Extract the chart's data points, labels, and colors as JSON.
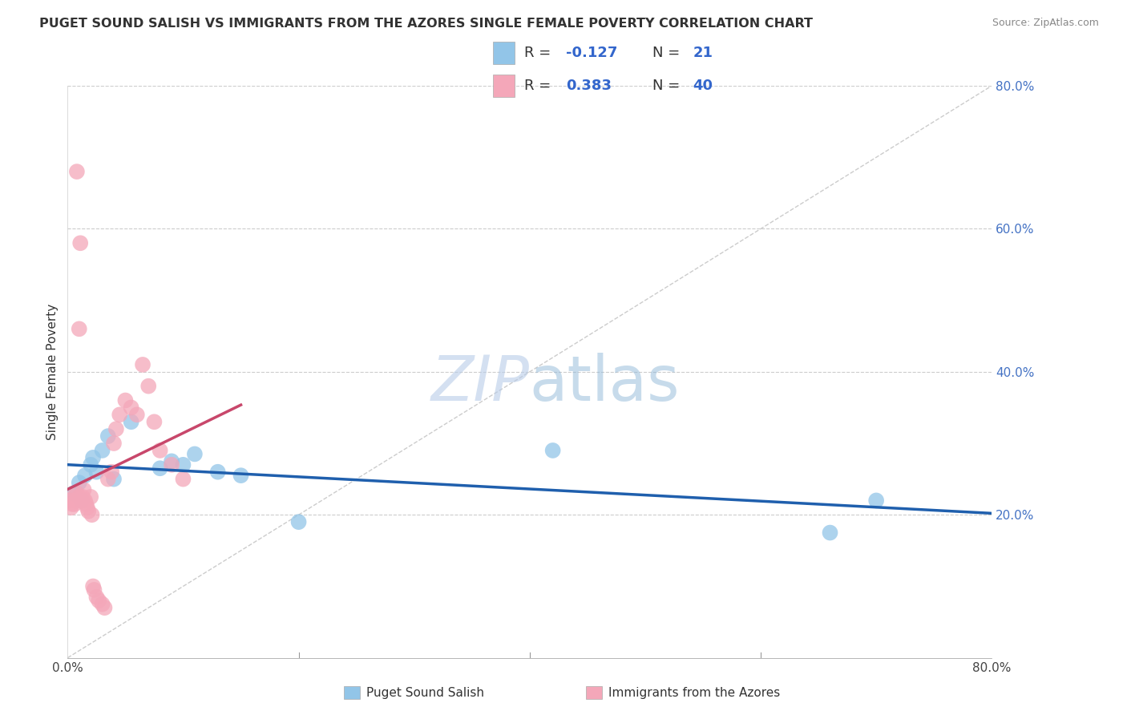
{
  "title": "PUGET SOUND SALISH VS IMMIGRANTS FROM THE AZORES SINGLE FEMALE POVERTY CORRELATION CHART",
  "source": "Source: ZipAtlas.com",
  "ylabel": "Single Female Poverty",
  "legend_label1": "Puget Sound Salish",
  "legend_label2": "Immigrants from the Azores",
  "R1": -0.127,
  "N1": 21,
  "R2": 0.383,
  "N2": 40,
  "xlim": [
    0.0,
    0.8
  ],
  "ylim": [
    0.0,
    0.8
  ],
  "yticks": [
    0.2,
    0.4,
    0.6,
    0.8
  ],
  "ytick_labels": [
    "20.0%",
    "40.0%",
    "60.0%",
    "80.0%"
  ],
  "xtick_positions": [
    0.0,
    0.2,
    0.4,
    0.6,
    0.8
  ],
  "color_blue": "#92C5E8",
  "color_pink": "#F4A7B9",
  "line_blue": "#1F5FAD",
  "line_pink": "#C8476B",
  "background": "#FFFFFF",
  "blue_points_x": [
    0.005,
    0.01,
    0.012,
    0.015,
    0.02,
    0.022,
    0.025,
    0.03,
    0.035,
    0.04,
    0.055,
    0.08,
    0.09,
    0.1,
    0.11,
    0.13,
    0.15,
    0.2,
    0.42,
    0.66,
    0.7
  ],
  "blue_points_y": [
    0.23,
    0.245,
    0.22,
    0.255,
    0.27,
    0.28,
    0.26,
    0.29,
    0.31,
    0.25,
    0.33,
    0.265,
    0.275,
    0.27,
    0.285,
    0.26,
    0.255,
    0.19,
    0.29,
    0.175,
    0.22
  ],
  "pink_points_x": [
    0.002,
    0.003,
    0.004,
    0.005,
    0.006,
    0.007,
    0.008,
    0.01,
    0.011,
    0.012,
    0.013,
    0.014,
    0.015,
    0.016,
    0.017,
    0.018,
    0.02,
    0.021,
    0.022,
    0.023,
    0.025,
    0.027,
    0.03,
    0.032,
    0.035,
    0.038,
    0.04,
    0.042,
    0.045,
    0.05,
    0.055,
    0.06,
    0.065,
    0.07,
    0.075,
    0.08,
    0.09,
    0.1,
    0.01,
    0.008
  ],
  "pink_points_y": [
    0.22,
    0.21,
    0.215,
    0.225,
    0.215,
    0.22,
    0.23,
    0.225,
    0.58,
    0.22,
    0.225,
    0.235,
    0.22,
    0.215,
    0.21,
    0.205,
    0.225,
    0.2,
    0.1,
    0.095,
    0.085,
    0.08,
    0.075,
    0.07,
    0.25,
    0.26,
    0.3,
    0.32,
    0.34,
    0.36,
    0.35,
    0.34,
    0.41,
    0.38,
    0.33,
    0.29,
    0.27,
    0.25,
    0.46,
    0.68
  ]
}
